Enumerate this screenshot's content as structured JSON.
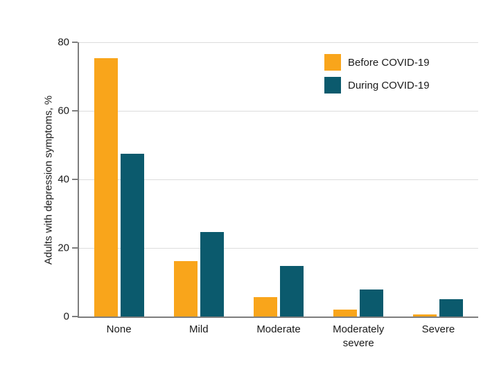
{
  "chart_data": {
    "type": "bar",
    "title": "",
    "ylabel": "Adults with depression symptoms, %",
    "xlabel": "",
    "ylim": [
      0,
      80
    ],
    "yticks": [
      0,
      20,
      40,
      60,
      80
    ],
    "grid": true,
    "legend_position": "top-right",
    "categories": [
      "None",
      "Mild",
      "Moderate",
      "Moderately severe",
      "Severe"
    ],
    "series": [
      {
        "name": "Before COVID-19",
        "color": "#F9A51B",
        "values": [
          75.3,
          16.2,
          5.7,
          2.1,
          0.7
        ]
      },
      {
        "name": "During COVID-19",
        "color": "#0B5A6D",
        "values": [
          47.5,
          24.6,
          14.8,
          7.9,
          5.1
        ]
      }
    ],
    "colors": {
      "gridline": "#dcdcdc",
      "axis": "#7d7d7d",
      "text": "#1a1a1a",
      "background": "#ffffff"
    }
  }
}
